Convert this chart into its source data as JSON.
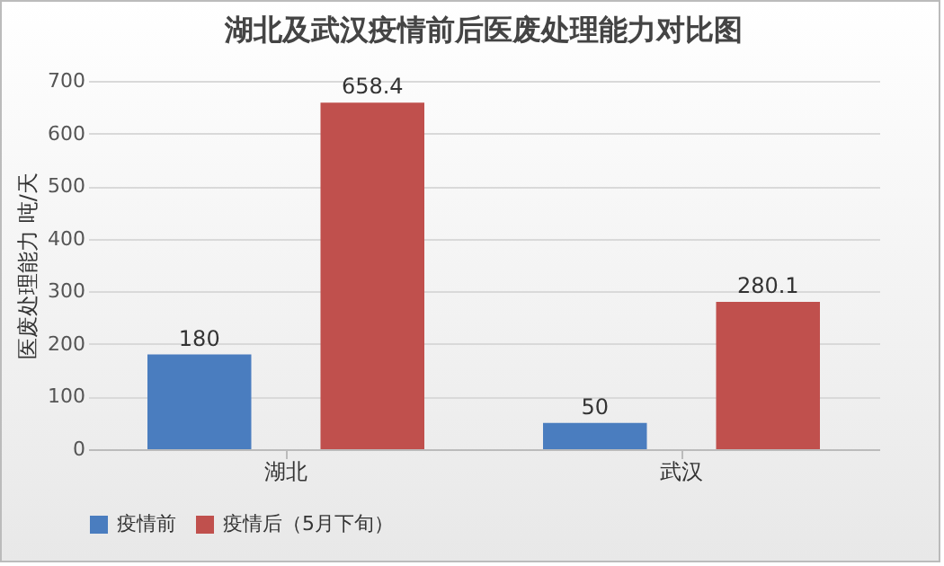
{
  "chart_data": {
    "type": "bar",
    "title": "湖北及武汉疫情前后医废处理能力对比图",
    "ylabel": "医废处理能力 吨/天",
    "categories": [
      "湖北",
      "武汉"
    ],
    "series": [
      {
        "name": "疫情前",
        "color": "#4a7dbf",
        "values": [
          180,
          50
        ]
      },
      {
        "name": "疫情后（5月下旬）",
        "color": "#c0504d",
        "values": [
          658.4,
          280.1
        ]
      }
    ],
    "ylim": [
      0,
      700
    ],
    "yticks": [
      0,
      100,
      200,
      300,
      400,
      500,
      600,
      700
    ],
    "grid": "y",
    "legend": "bottom",
    "data_labels": true
  }
}
